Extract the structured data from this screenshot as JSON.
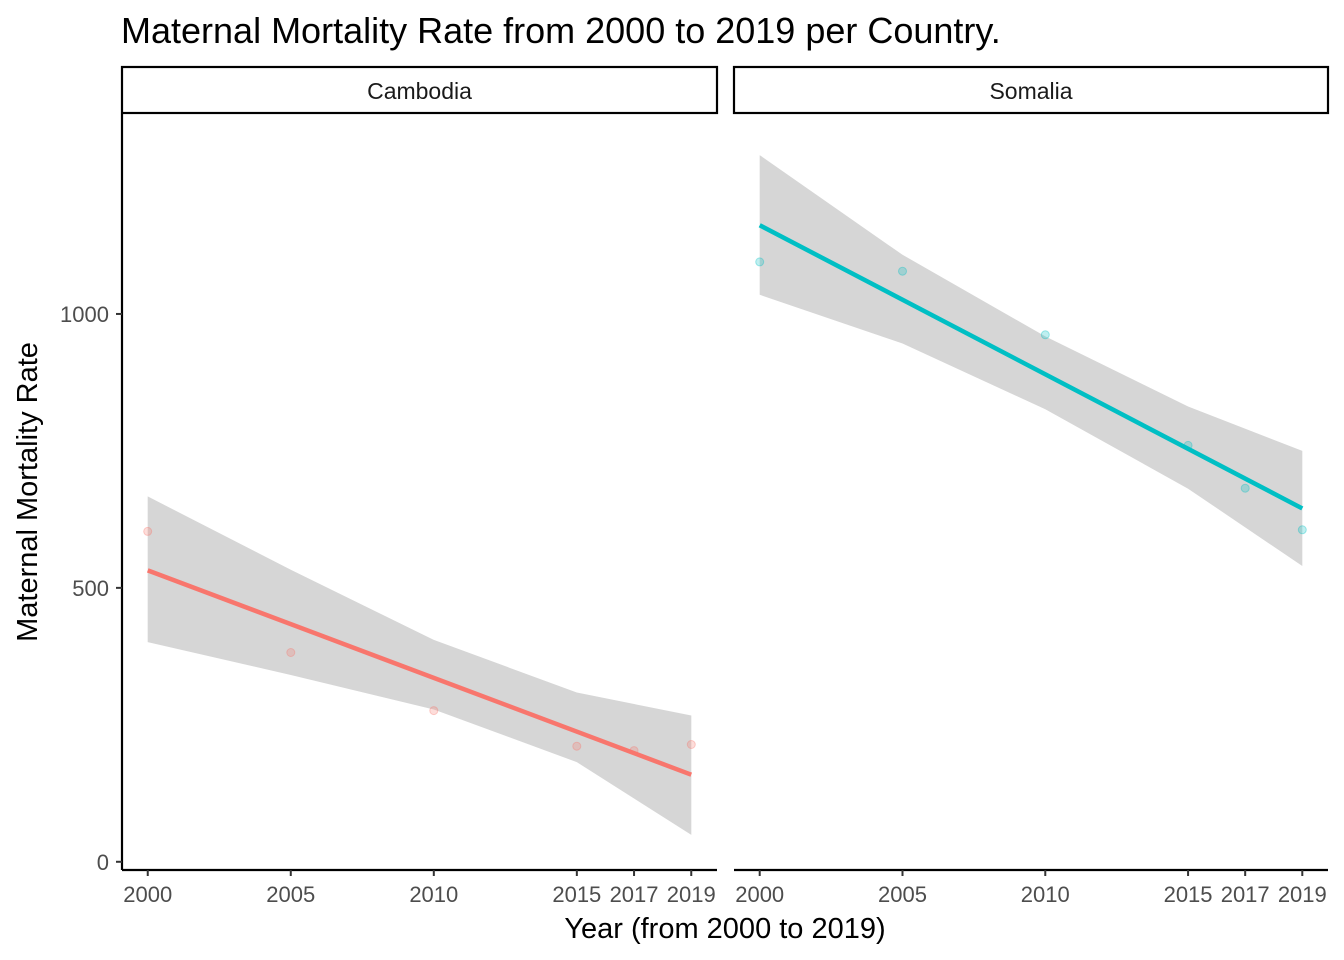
{
  "chart_data": {
    "type": "scatter",
    "title": "Maternal Mortality Rate from 2000 to 2019 per Country.",
    "xlabel": "Year (from 2000 to 2019)",
    "ylabel": "Maternal Mortality Rate",
    "x_ticks": [
      2000,
      2005,
      2010,
      2015,
      2017,
      2019
    ],
    "y_ticks": [
      0,
      500,
      1000
    ],
    "xlim": [
      1999.1,
      2019.9
    ],
    "ylim": [
      -15,
      1365
    ],
    "grid": false,
    "legend": "none",
    "panels": [
      {
        "facet": "Cambodia",
        "color": "#F8766D",
        "points": [
          {
            "x": 2000,
            "y": 603
          },
          {
            "x": 2005,
            "y": 382
          },
          {
            "x": 2010,
            "y": 276
          },
          {
            "x": 2015,
            "y": 211
          },
          {
            "x": 2017,
            "y": 203
          },
          {
            "x": 2019,
            "y": 214
          }
        ],
        "trend": {
          "x": [
            2000,
            2019
          ],
          "y": [
            532,
            159
          ]
        },
        "ci_band": {
          "x": [
            2000,
            2005,
            2010,
            2015,
            2019
          ],
          "lower": [
            401,
            341,
            278,
            182,
            49
          ],
          "upper": [
            667,
            533,
            405,
            309,
            267
          ]
        }
      },
      {
        "facet": "Somalia",
        "color": "#00BFC4",
        "points": [
          {
            "x": 2000,
            "y": 1095
          },
          {
            "x": 2005,
            "y": 1078
          },
          {
            "x": 2010,
            "y": 962
          },
          {
            "x": 2015,
            "y": 760
          },
          {
            "x": 2017,
            "y": 682
          },
          {
            "x": 2019,
            "y": 606
          }
        ],
        "trend": {
          "x": [
            2000,
            2019
          ],
          "y": [
            1162,
            645
          ]
        },
        "ci_band": {
          "x": [
            2000,
            2005,
            2010,
            2015,
            2019
          ],
          "lower": [
            1035,
            946,
            826,
            681,
            540
          ],
          "upper": [
            1290,
            1108,
            959,
            831,
            750
          ]
        }
      }
    ]
  }
}
